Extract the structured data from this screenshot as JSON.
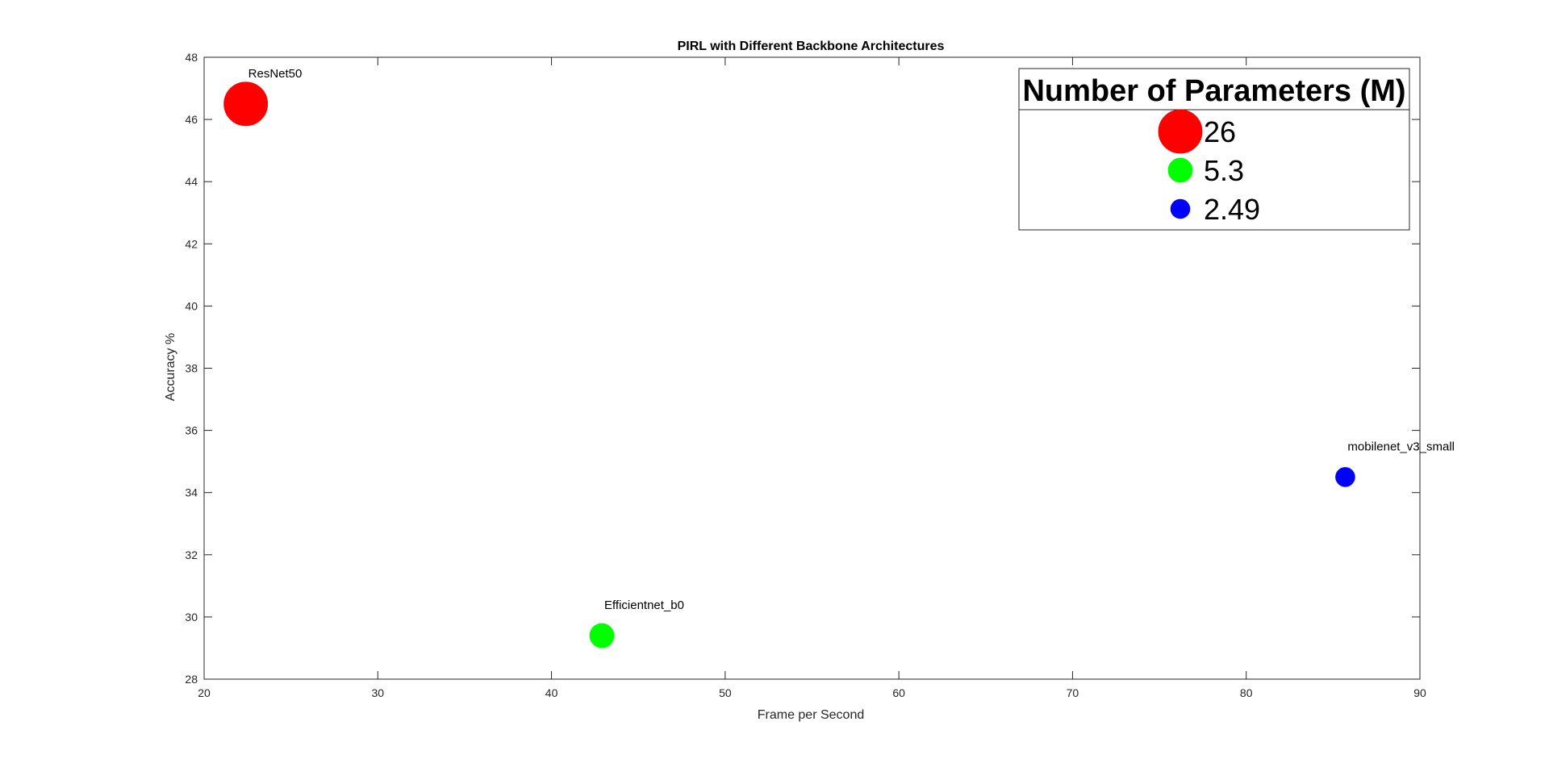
{
  "chart_data": {
    "type": "scatter",
    "title": "PIRL with Different Backbone Architectures",
    "xlabel": "Frame per Second",
    "ylabel": "Accuracy %",
    "xlim": [
      20,
      90
    ],
    "ylim": [
      28,
      48
    ],
    "xticks": [
      20,
      30,
      40,
      50,
      60,
      70,
      80,
      90
    ],
    "yticks": [
      28,
      30,
      32,
      34,
      36,
      38,
      40,
      42,
      44,
      46,
      48
    ],
    "grid": false,
    "points": [
      {
        "label": "ResNet50",
        "x": 22.4,
        "y": 46.5,
        "params": 26,
        "color": "#ff0000"
      },
      {
        "label": "Efficientnet_b0",
        "x": 42.9,
        "y": 29.4,
        "params": 5.3,
        "color": "#00ff00"
      },
      {
        "label": "mobilenet_v3_small",
        "x": 85.7,
        "y": 34.5,
        "params": 2.49,
        "color": "#0000ff"
      }
    ],
    "legend": {
      "title": "Number of Parameters (M)",
      "placement": "top-right",
      "entries": [
        {
          "label": "26",
          "color": "#ff0000"
        },
        {
          "label": "5.3",
          "color": "#00ff00"
        },
        {
          "label": "2.49",
          "color": "#0000ff"
        }
      ]
    }
  }
}
